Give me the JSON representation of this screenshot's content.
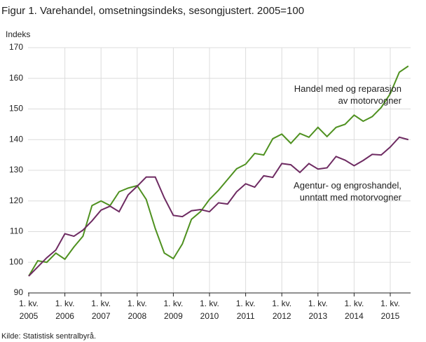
{
  "chart_data": {
    "type": "line",
    "title": "Figur 1. Varehandel, omsetningsindeks, sesongjustert. 2005=100",
    "y_label": "Indeks",
    "source": "Kilde: Statistisk sentralbyrå.",
    "x_tick_prefix": "1. kv.",
    "categories": [
      "2005",
      null,
      null,
      null,
      "2006",
      null,
      null,
      null,
      "2007",
      null,
      null,
      null,
      "2008",
      null,
      null,
      null,
      "2009",
      null,
      null,
      null,
      "2010",
      null,
      null,
      null,
      "2011",
      null,
      null,
      null,
      "2012",
      null,
      null,
      null,
      "2013",
      null,
      null,
      null,
      "2014",
      null,
      null,
      null,
      "2015",
      null,
      null
    ],
    "series": [
      {
        "name": "Handel med og reparasjon av motorvogner",
        "color": "#4f9120",
        "values": [
          95.5,
          100.5,
          100,
          103,
          101,
          105,
          108.5,
          118.5,
          120,
          118.5,
          123,
          124.2,
          125,
          120.5,
          111,
          103,
          101.2,
          106,
          114,
          116.5,
          120.5,
          123.5,
          127,
          130.5,
          132,
          135.5,
          135,
          140.3,
          141.8,
          138.8,
          142,
          140.8,
          144,
          141,
          144,
          145,
          148,
          146,
          147.5,
          150.5,
          155,
          162,
          164
        ]
      },
      {
        "name": "Agentur- og engroshandel, unntatt med motorvogner",
        "color": "#6e2b62",
        "values": [
          95.5,
          98.5,
          101.5,
          104,
          109.3,
          108.5,
          110.5,
          113.5,
          117,
          118.3,
          116.5,
          122,
          124.8,
          127.8,
          127.8,
          121,
          115.3,
          114.9,
          116.8,
          117.2,
          116.5,
          119.4,
          119,
          123,
          125.6,
          124.5,
          128.2,
          127.7,
          132.2,
          131.8,
          129.3,
          132.2,
          130.4,
          130.8,
          134.5,
          133.3,
          131.5,
          133.2,
          135.2,
          135,
          137.6,
          140.8,
          140
        ]
      }
    ],
    "ylim": [
      90,
      170
    ],
    "yticks": [
      90,
      100,
      110,
      120,
      130,
      140,
      150,
      160,
      170
    ],
    "grid": true
  }
}
